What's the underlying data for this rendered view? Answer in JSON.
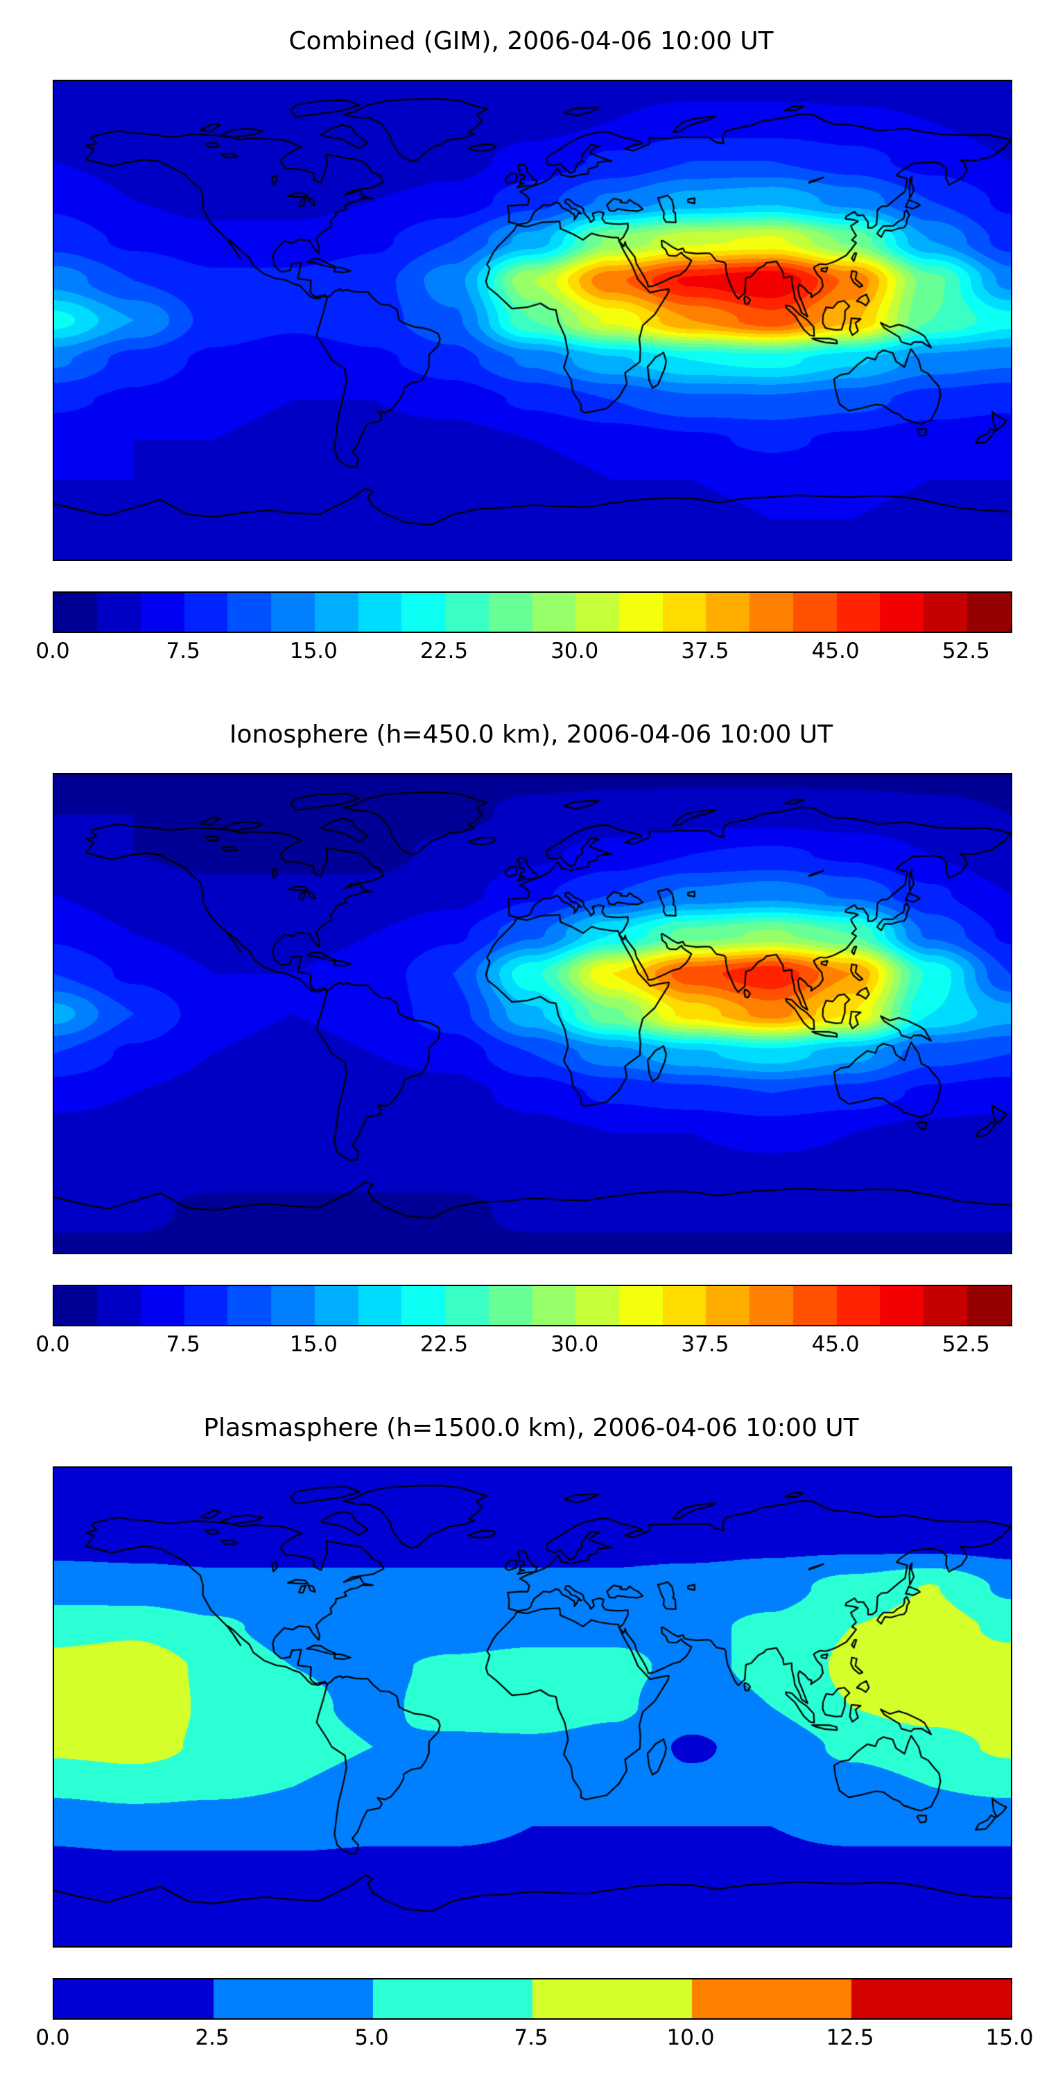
{
  "figure": {
    "background": "#ffffff",
    "n_panels": 3
  },
  "chart_data": [
    {
      "type": "heatmap",
      "subtype": "filled-contour-world-map",
      "title": "Combined (GIM), 2006-04-06 10:00 UT",
      "projection": "equirectangular",
      "lon_range": [
        -180,
        180
      ],
      "lat_range": [
        -90,
        90
      ],
      "colormap": "jet",
      "vmin": 0,
      "vmax": 55,
      "level_step": 2.5,
      "n_levels": 22,
      "coastline_color": "#000000",
      "colorbar_ticks": {
        "labels": [
          "0.0",
          "7.5",
          "15.0",
          "22.5",
          "30.0",
          "37.5",
          "45.0",
          "52.5"
        ],
        "values": [
          0,
          7.5,
          15,
          22.5,
          30,
          37.5,
          45,
          52.5
        ]
      },
      "lon": [
        -180,
        -150,
        -120,
        -90,
        -60,
        -30,
        0,
        30,
        60,
        90,
        120,
        150,
        180
      ],
      "lat": [
        90,
        75,
        60,
        45,
        30,
        15,
        0,
        -15,
        -30,
        -45,
        -60,
        -75,
        -90
      ],
      "grid": [
        [
          4,
          4,
          4,
          4,
          4,
          4,
          4,
          4,
          4,
          4,
          4,
          4,
          4
        ],
        [
          4,
          4,
          3.5,
          3,
          3,
          3.5,
          4,
          5,
          6,
          6,
          5.5,
          5,
          4
        ],
        [
          5,
          4,
          3.5,
          3,
          3,
          4,
          6,
          8,
          10,
          10,
          8.5,
          6.5,
          5
        ],
        [
          7,
          5,
          4,
          4,
          5,
          6,
          9,
          13,
          16,
          17,
          14,
          10,
          7
        ],
        [
          9,
          7,
          6,
          6,
          7,
          10,
          16,
          28,
          32,
          33,
          27,
          15,
          9
        ],
        [
          14,
          10,
          8,
          8,
          9,
          14,
          30,
          42,
          48,
          50,
          42,
          26,
          14
        ],
        [
          21,
          15,
          9,
          8,
          9,
          12,
          25,
          33,
          40,
          44,
          38,
          25,
          21
        ],
        [
          13,
          9,
          7,
          6,
          7,
          9,
          13,
          17,
          20,
          21,
          18,
          14,
          13
        ],
        [
          8,
          7,
          6,
          5,
          5,
          6,
          8,
          10,
          12,
          12,
          11,
          9,
          8
        ],
        [
          6,
          5,
          5,
          4,
          4,
          4,
          5,
          6,
          7,
          8,
          7,
          6,
          6
        ],
        [
          5,
          5,
          4,
          4,
          4,
          4,
          4,
          5,
          5,
          6,
          6,
          5,
          5
        ],
        [
          4,
          4,
          4,
          3,
          3,
          3,
          4,
          4,
          4,
          5,
          5,
          4,
          4
        ],
        [
          3,
          3,
          3,
          3,
          3,
          3,
          3,
          3,
          3,
          3,
          3,
          3,
          3
        ]
      ]
    },
    {
      "type": "heatmap",
      "subtype": "filled-contour-world-map",
      "title": "Ionosphere  (h=450.0 km), 2006-04-06 10:00 UT",
      "projection": "equirectangular",
      "lon_range": [
        -180,
        180
      ],
      "lat_range": [
        -90,
        90
      ],
      "colormap": "jet",
      "vmin": 0,
      "vmax": 55,
      "level_step": 2.5,
      "n_levels": 22,
      "coastline_color": "#000000",
      "colorbar_ticks": {
        "labels": [
          "0.0",
          "7.5",
          "15.0",
          "22.5",
          "30.0",
          "37.5",
          "45.0",
          "52.5"
        ],
        "values": [
          0,
          7.5,
          15,
          22.5,
          30,
          37.5,
          45,
          52.5
        ]
      },
      "lon": [
        -180,
        -150,
        -120,
        -90,
        -60,
        -30,
        0,
        30,
        60,
        90,
        120,
        150,
        180
      ],
      "lat": [
        90,
        75,
        60,
        45,
        30,
        15,
        0,
        -15,
        -30,
        -45,
        -60,
        -75,
        -90
      ],
      "grid": [
        [
          2,
          2,
          2,
          2,
          2,
          2,
          2,
          2,
          2,
          2,
          2,
          2,
          2
        ],
        [
          2.5,
          2.5,
          2,
          2,
          2,
          2,
          3,
          3.5,
          4,
          4,
          3.5,
          3,
          2.5
        ],
        [
          3,
          2.5,
          2,
          2,
          2,
          3,
          4.5,
          6,
          7.5,
          8,
          7,
          5,
          3
        ],
        [
          5,
          3.5,
          3,
          3,
          3,
          4,
          7,
          10,
          13,
          14,
          12,
          8,
          5
        ],
        [
          7,
          5,
          4,
          4,
          5,
          7,
          12,
          20,
          26,
          28,
          25,
          12,
          7
        ],
        [
          10,
          7,
          5,
          5,
          6,
          10,
          22,
          35,
          44,
          47,
          40,
          22,
          10
        ],
        [
          16,
          10,
          6,
          5,
          6,
          9,
          17,
          27,
          36,
          41,
          35,
          20,
          16
        ],
        [
          10,
          7,
          5,
          4,
          5,
          6,
          10,
          14,
          17,
          19,
          16,
          11,
          10
        ],
        [
          6,
          5,
          4,
          4,
          4,
          4,
          6,
          8,
          9,
          10,
          9,
          7,
          6
        ],
        [
          4,
          4,
          3,
          3,
          3,
          3,
          4,
          5,
          5,
          6,
          5,
          4,
          4
        ],
        [
          3,
          3,
          3,
          3,
          3,
          3,
          3,
          4,
          4,
          4,
          4,
          3,
          3
        ],
        [
          3,
          3,
          2,
          2,
          2,
          2,
          3,
          3,
          3,
          3,
          3,
          3,
          3
        ],
        [
          2,
          2,
          2,
          2,
          2,
          2,
          2,
          2,
          2,
          2,
          2,
          2,
          2
        ]
      ]
    },
    {
      "type": "heatmap",
      "subtype": "filled-contour-world-map",
      "title": "Plasmasphere (h=1500.0 km), 2006-04-06 10:00 UT",
      "projection": "equirectangular",
      "lon_range": [
        -180,
        180
      ],
      "lat_range": [
        -90,
        90
      ],
      "colormap": "jet",
      "vmin": 0,
      "vmax": 15,
      "level_step": 2.5,
      "n_levels": 6,
      "coastline_color": "#000000",
      "colorbar_ticks": {
        "labels": [
          "0.0",
          "2.5",
          "5.0",
          "7.5",
          "10.0",
          "12.5",
          "15.0"
        ],
        "values": [
          0,
          2.5,
          5,
          7.5,
          10,
          12.5,
          15
        ]
      },
      "lon": [
        -180,
        -150,
        -120,
        -90,
        -60,
        -30,
        0,
        30,
        60,
        90,
        120,
        150,
        180
      ],
      "lat": [
        90,
        75,
        60,
        45,
        30,
        15,
        0,
        -15,
        -30,
        -45,
        -60,
        -75,
        -90
      ],
      "grid": [
        [
          1.5,
          1.5,
          1.5,
          1.5,
          1.5,
          1.5,
          1.5,
          1.5,
          1.5,
          1.5,
          1.5,
          1.5,
          1.5
        ],
        [
          1.8,
          1.8,
          1.8,
          1.8,
          1.8,
          1.8,
          1.8,
          1.8,
          1.8,
          1.8,
          1.8,
          1.8,
          1.8
        ],
        [
          2,
          2,
          2,
          2,
          2,
          2,
          2,
          2,
          2,
          2.2,
          2.2,
          2.2,
          2
        ],
        [
          4,
          3.5,
          3,
          3,
          3,
          3,
          3,
          3,
          3.5,
          4,
          6,
          7.6,
          4.5
        ],
        [
          6.5,
          7,
          5.5,
          4,
          3.5,
          3.5,
          4,
          4.5,
          4.5,
          5.5,
          7.5,
          8.5,
          7
        ],
        [
          8.5,
          9,
          7,
          5,
          4.5,
          5.5,
          6,
          5.5,
          4.5,
          5.5,
          8,
          9,
          8.5
        ],
        [
          9,
          9.5,
          7,
          5.5,
          4.5,
          6,
          6.5,
          5.5,
          3.5,
          5,
          7.5,
          8.5,
          9
        ],
        [
          8,
          8.5,
          7,
          6,
          5,
          4.5,
          4.5,
          4,
          2.2,
          3.5,
          5.5,
          6.5,
          8
        ],
        [
          5.5,
          6,
          5.5,
          5,
          4,
          3.5,
          3.5,
          3,
          3,
          3,
          4,
          5,
          5.5
        ],
        [
          3,
          3.5,
          3.5,
          3.5,
          3,
          3,
          2.5,
          2.5,
          2.5,
          2.5,
          3,
          3,
          3
        ],
        [
          2,
          2,
          2,
          2,
          2,
          2,
          2,
          2,
          2,
          2,
          2,
          2,
          2
        ],
        [
          1.8,
          1.8,
          1.8,
          1.8,
          1.8,
          1.8,
          1.8,
          1.8,
          1.8,
          1.8,
          1.8,
          1.8,
          1.8
        ],
        [
          1.5,
          1.5,
          1.5,
          1.5,
          1.5,
          1.5,
          1.5,
          1.5,
          1.5,
          1.5,
          1.5,
          1.5,
          1.5
        ]
      ]
    }
  ]
}
